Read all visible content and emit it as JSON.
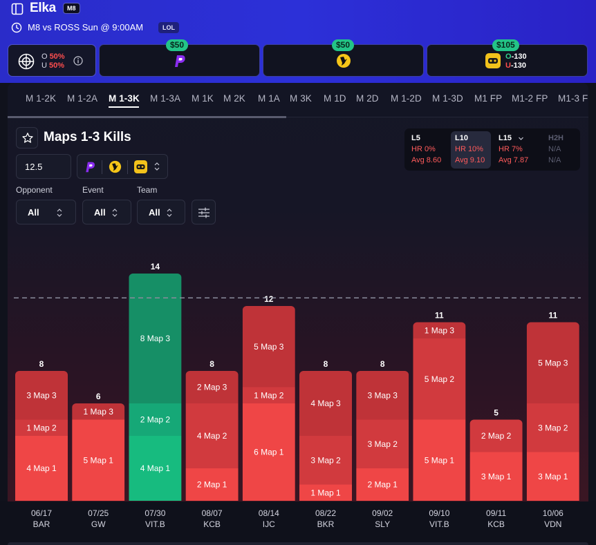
{
  "header": {
    "player": "Elka",
    "team_badge": "M8",
    "match": "M8 vs ROSS Sun @ 9:00AM",
    "game_badge": "LOL"
  },
  "odds": {
    "main": {
      "over_letter": "O",
      "over_pct": "50%",
      "under_letter": "U",
      "under_pct": "50%"
    },
    "cards": [
      {
        "price": "$50",
        "book": "prizepicks-logo"
      },
      {
        "price": "$50",
        "book": "underdog-logo"
      },
      {
        "price": "$105",
        "book": "sleeper-logo",
        "over_letter": "O",
        "over_odds": "-130",
        "under_letter": "U",
        "under_odds": "-130"
      }
    ]
  },
  "tabs": [
    "M 1-2K",
    "M 1-2A",
    "M 1-3K",
    "M 1-3A",
    "M 1K",
    "M 2K",
    "M 1A",
    "M 3K",
    "M 1D",
    "M 2D",
    "M 1-2D",
    "M 1-3D",
    "M1 FP",
    "M1-2 FP",
    "M1-3 FP"
  ],
  "active_tab": "M 1-3K",
  "title": "Maps 1-3 Kills",
  "line_value": "12.5",
  "filters": [
    {
      "label": "Opponent",
      "value": "All"
    },
    {
      "label": "Event",
      "value": "All"
    },
    {
      "label": "Team",
      "value": "All"
    }
  ],
  "stats": [
    {
      "head": "L5",
      "hr": "HR 0%",
      "avg": "Avg 8.60",
      "active": false,
      "dim": false
    },
    {
      "head": "L10",
      "hr": "HR 10%",
      "avg": "Avg 9.10",
      "active": true,
      "dim": false
    },
    {
      "head": "L15",
      "hr": "HR 7%",
      "avg": "Avg 7.87",
      "active": false,
      "dim": false
    },
    {
      "head": "H2H",
      "hr": "N/A",
      "avg": "N/A",
      "active": false,
      "dim": true
    }
  ],
  "colors": {
    "over": "#16b97a",
    "under": "#ef4444",
    "map1_under": "#ef4646",
    "map2_under": "#d13a3e",
    "map3_under": "#bf3338",
    "map1_over": "#17bb7f",
    "map2_over": "#16a877",
    "map3_over": "#168f66"
  },
  "chart_data": {
    "type": "bar",
    "stacked": true,
    "line": 12.5,
    "ylim": [
      0,
      14
    ],
    "categories": [
      {
        "date": "06/17",
        "opp": "BAR"
      },
      {
        "date": "07/25",
        "opp": "GW"
      },
      {
        "date": "07/30",
        "opp": "VIT.B"
      },
      {
        "date": "08/07",
        "opp": "KCB"
      },
      {
        "date": "08/14",
        "opp": "IJC"
      },
      {
        "date": "08/22",
        "opp": "BKR"
      },
      {
        "date": "09/02",
        "opp": "SLY"
      },
      {
        "date": "09/10",
        "opp": "VIT.B"
      },
      {
        "date": "09/11",
        "opp": "KCB"
      },
      {
        "date": "10/06",
        "opp": "VDN"
      }
    ],
    "totals": [
      8,
      6,
      14,
      8,
      12,
      8,
      8,
      11,
      5,
      11
    ],
    "series": [
      {
        "name": "Map 1",
        "values": [
          4,
          5,
          4,
          2,
          6,
          1,
          2,
          5,
          3,
          3
        ]
      },
      {
        "name": "Map 2",
        "values": [
          1,
          0,
          2,
          4,
          1,
          3,
          3,
          5,
          2,
          3
        ]
      },
      {
        "name": "Map 3",
        "values": [
          3,
          1,
          8,
          2,
          5,
          4,
          3,
          1,
          0,
          5
        ]
      }
    ]
  }
}
